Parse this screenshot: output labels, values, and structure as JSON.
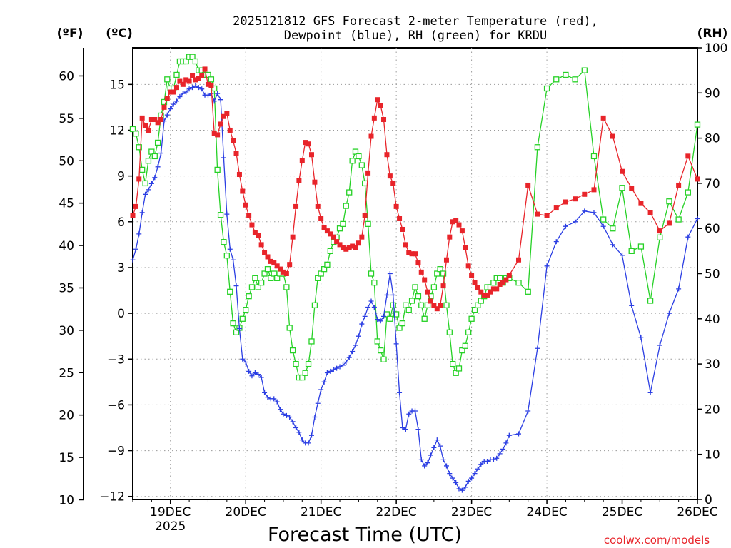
{
  "chart_data": {
    "type": "line",
    "title_line1": "2025121812 GFS Forecast 2-meter Temperature (red),",
    "title_line2": "Dewpoint (blue), RH (green) for KRDU",
    "units": {
      "f": "(ºF)",
      "c": "(ºC)",
      "rh": "(RH)"
    },
    "xlabel": "Forecast Time (UTC)",
    "credit": "coolwx.com/models",
    "xlim": [
      -0.5,
      7.0
    ],
    "ylim_c": [
      -12.2,
      17.4
    ],
    "ylim_rh": [
      0,
      100
    ],
    "x_ticks": [
      {
        "x": 0,
        "label": "19DEC",
        "sub": "2025"
      },
      {
        "x": 1,
        "label": "20DEC",
        "sub": ""
      },
      {
        "x": 2,
        "label": "21DEC",
        "sub": ""
      },
      {
        "x": 3,
        "label": "22DEC",
        "sub": ""
      },
      {
        "x": 4,
        "label": "23DEC",
        "sub": ""
      },
      {
        "x": 5,
        "label": "24DEC",
        "sub": ""
      },
      {
        "x": 6,
        "label": "25DEC",
        "sub": ""
      },
      {
        "x": 7,
        "label": "26DEC",
        "sub": ""
      }
    ],
    "c_ticks": [
      "15",
      "12",
      "9",
      "6",
      "3",
      "0",
      "−3",
      "−6",
      "−9",
      "−12"
    ],
    "c_tick_values": [
      15,
      12,
      9,
      6,
      3,
      0,
      -3,
      -6,
      -9,
      -12
    ],
    "f_ticks": [
      "60",
      "55",
      "50",
      "45",
      "40",
      "35",
      "30",
      "25",
      "20",
      "15",
      "10"
    ],
    "f_tick_values": [
      60,
      55,
      50,
      45,
      40,
      35,
      30,
      25,
      20,
      15,
      10
    ],
    "rh_ticks": [
      "100",
      "90",
      "80",
      "70",
      "60",
      "50",
      "40",
      "30",
      "20",
      "10",
      "0"
    ],
    "rh_tick_values": [
      100,
      90,
      80,
      70,
      60,
      50,
      40,
      30,
      20,
      10,
      0
    ],
    "series": [
      {
        "name": "Temperature",
        "unit": "C",
        "color": "#e8242a",
        "marker": "filled-square",
        "x": [
          -0.5,
          -0.458,
          -0.417,
          -0.375,
          -0.333,
          -0.292,
          -0.25,
          -0.208,
          -0.167,
          -0.125,
          -0.083,
          -0.042,
          0,
          0.042,
          0.083,
          0.125,
          0.167,
          0.208,
          0.25,
          0.292,
          0.333,
          0.375,
          0.417,
          0.458,
          0.5,
          0.542,
          0.583,
          0.625,
          0.667,
          0.708,
          0.75,
          0.792,
          0.833,
          0.875,
          0.917,
          0.958,
          1,
          1.042,
          1.083,
          1.125,
          1.167,
          1.208,
          1.25,
          1.292,
          1.333,
          1.375,
          1.417,
          1.458,
          1.5,
          1.542,
          1.583,
          1.625,
          1.667,
          1.708,
          1.75,
          1.792,
          1.833,
          1.875,
          1.917,
          1.958,
          2,
          2.042,
          2.083,
          2.125,
          2.167,
          2.208,
          2.25,
          2.292,
          2.333,
          2.375,
          2.417,
          2.458,
          2.5,
          2.542,
          2.583,
          2.625,
          2.667,
          2.708,
          2.75,
          2.792,
          2.833,
          2.875,
          2.917,
          2.958,
          3,
          3.042,
          3.083,
          3.125,
          3.167,
          3.208,
          3.25,
          3.292,
          3.333,
          3.375,
          3.417,
          3.458,
          3.5,
          3.542,
          3.583,
          3.625,
          3.667,
          3.708,
          3.75,
          3.792,
          3.833,
          3.875,
          3.917,
          3.958,
          4,
          4.042,
          4.083,
          4.125,
          4.167,
          4.208,
          4.25,
          4.292,
          4.333,
          4.375,
          4.417,
          4.458,
          4.5,
          4.625,
          4.75,
          4.875,
          5,
          5.125,
          5.25,
          5.375,
          5.5,
          5.625,
          5.75,
          5.875,
          6,
          6.125,
          6.25,
          6.375,
          6.5,
          6.625,
          6.75,
          6.875,
          7
        ],
        "values": [
          6.4,
          7.0,
          8.8,
          12.8,
          12.3,
          12.0,
          12.7,
          12.7,
          12.5,
          12.7,
          13.5,
          14.1,
          14.5,
          14.5,
          14.8,
          15.2,
          15.0,
          15.3,
          15.2,
          15.6,
          15.3,
          15.4,
          15.6,
          16.0,
          15.0,
          14.9,
          11.8,
          11.7,
          12.4,
          12.9,
          13.1,
          12.0,
          11.3,
          10.5,
          9.1,
          8.0,
          7.1,
          6.4,
          5.8,
          5.3,
          5.1,
          4.5,
          4.0,
          3.7,
          3.4,
          3.3,
          3.1,
          2.9,
          2.7,
          2.6,
          3.2,
          5.0,
          7.0,
          8.7,
          10.0,
          11.2,
          11.1,
          10.4,
          8.6,
          7.0,
          6.2,
          5.6,
          5.4,
          5.2,
          5.0,
          4.7,
          4.5,
          4.3,
          4.2,
          4.3,
          4.4,
          4.3,
          4.6,
          5.0,
          6.4,
          9.2,
          11.6,
          12.8,
          14.0,
          13.6,
          12.7,
          10.4,
          9.0,
          8.5,
          7.0,
          6.2,
          5.5,
          4.5,
          4.0,
          3.9,
          3.9,
          3.3,
          2.7,
          2.2,
          1.4,
          0.8,
          0.5,
          0.3,
          0.5,
          1.8,
          3.5,
          5.0,
          6.0,
          6.1,
          5.8,
          5.4,
          4.3,
          3.1,
          2.5,
          2.0,
          1.7,
          1.4,
          1.2,
          1.2,
          1.4,
          1.6,
          1.6,
          1.9,
          2.0,
          2.2,
          2.5,
          3.5,
          8.4,
          6.5,
          6.4,
          6.9,
          7.3,
          7.5,
          7.8,
          8.1,
          12.8,
          11.6,
          9.3,
          8.2,
          7.2,
          6.6,
          5.4,
          5.9,
          8.4,
          10.3,
          8.8
        ]
      },
      {
        "name": "Dewpoint",
        "unit": "C",
        "color": "#2b3ee3",
        "marker": "plus",
        "x": [
          -0.5,
          -0.458,
          -0.417,
          -0.375,
          -0.333,
          -0.292,
          -0.25,
          -0.208,
          -0.167,
          -0.125,
          -0.083,
          -0.042,
          0,
          0.042,
          0.083,
          0.125,
          0.167,
          0.208,
          0.25,
          0.292,
          0.333,
          0.375,
          0.417,
          0.458,
          0.5,
          0.542,
          0.583,
          0.625,
          0.667,
          0.708,
          0.75,
          0.792,
          0.833,
          0.875,
          0.917,
          0.958,
          1,
          1.042,
          1.083,
          1.125,
          1.167,
          1.208,
          1.25,
          1.292,
          1.333,
          1.375,
          1.417,
          1.458,
          1.5,
          1.542,
          1.583,
          1.625,
          1.667,
          1.708,
          1.75,
          1.792,
          1.833,
          1.875,
          1.917,
          1.958,
          2,
          2.042,
          2.083,
          2.125,
          2.167,
          2.208,
          2.25,
          2.292,
          2.333,
          2.375,
          2.417,
          2.458,
          2.5,
          2.542,
          2.583,
          2.625,
          2.667,
          2.708,
          2.75,
          2.792,
          2.833,
          2.875,
          2.917,
          2.958,
          3,
          3.042,
          3.083,
          3.125,
          3.167,
          3.208,
          3.25,
          3.292,
          3.333,
          3.375,
          3.417,
          3.458,
          3.5,
          3.542,
          3.583,
          3.625,
          3.667,
          3.708,
          3.75,
          3.792,
          3.833,
          3.875,
          3.917,
          3.958,
          4,
          4.042,
          4.083,
          4.125,
          4.167,
          4.208,
          4.25,
          4.292,
          4.333,
          4.375,
          4.417,
          4.458,
          4.5,
          4.625,
          4.75,
          4.875,
          5,
          5.125,
          5.25,
          5.375,
          5.5,
          5.625,
          5.75,
          5.875,
          6,
          6.125,
          6.25,
          6.375,
          6.5,
          6.625,
          6.75,
          6.875,
          7
        ],
        "values": [
          3.5,
          4.2,
          5.2,
          6.6,
          7.8,
          8.1,
          8.5,
          8.9,
          9.6,
          10.5,
          12.6,
          13.0,
          13.4,
          13.7,
          13.9,
          14.2,
          14.4,
          14.5,
          14.7,
          14.8,
          14.9,
          14.8,
          14.7,
          14.3,
          14.3,
          14.4,
          13.9,
          14.4,
          14.0,
          10.2,
          6.5,
          4.2,
          3.5,
          1.8,
          -1.0,
          -3.0,
          -3.2,
          -3.8,
          -4.1,
          -3.9,
          -4.0,
          -4.2,
          -5.2,
          -5.5,
          -5.6,
          -5.6,
          -5.8,
          -6.3,
          -6.6,
          -6.7,
          -6.8,
          -7.1,
          -7.5,
          -7.8,
          -8.3,
          -8.5,
          -8.5,
          -8.0,
          -6.8,
          -5.9,
          -5.0,
          -4.5,
          -3.9,
          -3.8,
          -3.7,
          -3.6,
          -3.5,
          -3.4,
          -3.2,
          -2.9,
          -2.5,
          -2.1,
          -1.5,
          -0.7,
          -0.2,
          0.4,
          0.8,
          0.4,
          -0.4,
          -0.5,
          -0.2,
          1.2,
          2.6,
          1.2,
          -2.0,
          -5.2,
          -7.5,
          -7.6,
          -6.6,
          -6.4,
          -6.4,
          -7.6,
          -9.6,
          -10.0,
          -9.8,
          -9.3,
          -8.8,
          -8.3,
          -8.7,
          -9.6,
          -10.0,
          -10.5,
          -10.8,
          -11.1,
          -11.5,
          -11.6,
          -11.4,
          -11.0,
          -10.8,
          -10.5,
          -10.2,
          -9.9,
          -9.7,
          -9.7,
          -9.6,
          -9.6,
          -9.5,
          -9.2,
          -8.9,
          -8.5,
          -8.0,
          -7.9,
          -6.4,
          -2.3,
          3.1,
          4.7,
          5.7,
          6.0,
          6.7,
          6.6,
          5.7,
          4.5,
          3.8,
          0.5,
          -1.6,
          -5.2,
          -2.1,
          0.0,
          1.6,
          5.0,
          6.2
        ]
      },
      {
        "name": "RH",
        "unit": "%",
        "color": "#26d126",
        "marker": "open-square",
        "x": [
          -0.5,
          -0.458,
          -0.417,
          -0.375,
          -0.333,
          -0.292,
          -0.25,
          -0.208,
          -0.167,
          -0.125,
          -0.083,
          -0.042,
          0,
          0.042,
          0.083,
          0.125,
          0.167,
          0.208,
          0.25,
          0.292,
          0.333,
          0.375,
          0.417,
          0.458,
          0.5,
          0.542,
          0.583,
          0.625,
          0.667,
          0.708,
          0.75,
          0.792,
          0.833,
          0.875,
          0.917,
          0.958,
          1,
          1.042,
          1.083,
          1.125,
          1.167,
          1.208,
          1.25,
          1.292,
          1.333,
          1.375,
          1.417,
          1.458,
          1.5,
          1.542,
          1.583,
          1.625,
          1.667,
          1.708,
          1.75,
          1.792,
          1.833,
          1.875,
          1.917,
          1.958,
          2,
          2.042,
          2.083,
          2.125,
          2.167,
          2.208,
          2.25,
          2.292,
          2.333,
          2.375,
          2.417,
          2.458,
          2.5,
          2.542,
          2.583,
          2.625,
          2.667,
          2.708,
          2.75,
          2.792,
          2.833,
          2.875,
          2.917,
          2.958,
          3,
          3.042,
          3.083,
          3.125,
          3.167,
          3.208,
          3.25,
          3.292,
          3.333,
          3.375,
          3.417,
          3.458,
          3.5,
          3.542,
          3.583,
          3.625,
          3.667,
          3.708,
          3.75,
          3.792,
          3.833,
          3.875,
          3.917,
          3.958,
          4,
          4.042,
          4.083,
          4.125,
          4.167,
          4.208,
          4.25,
          4.292,
          4.333,
          4.375,
          4.417,
          4.458,
          4.5,
          4.625,
          4.75,
          4.875,
          5,
          5.125,
          5.25,
          5.375,
          5.5,
          5.625,
          5.75,
          5.875,
          6,
          6.125,
          6.25,
          6.375,
          6.5,
          6.625,
          6.75,
          6.875,
          7
        ],
        "values": [
          82,
          81,
          78,
          73,
          70,
          75,
          77,
          76,
          79,
          85,
          88,
          93,
          91,
          91,
          94,
          97,
          97,
          97,
          98,
          98,
          97,
          95,
          95,
          94,
          94,
          93,
          91,
          73,
          63,
          57,
          54,
          46,
          39,
          37,
          38,
          40,
          42,
          45,
          47,
          49,
          47,
          48,
          50,
          51,
          49,
          50,
          49,
          50,
          50,
          47,
          38,
          33,
          30,
          27,
          27,
          28,
          30,
          35,
          43,
          49,
          50,
          51,
          52,
          55,
          57,
          58,
          60,
          61,
          65,
          68,
          75,
          77,
          76,
          74,
          70,
          61,
          50,
          48,
          35,
          33,
          31,
          41,
          40,
          43,
          41,
          38,
          39,
          43,
          42,
          44,
          47,
          45,
          43,
          40,
          43,
          45,
          47,
          50,
          51,
          50,
          43,
          37,
          30,
          28,
          29,
          33,
          34,
          37,
          40,
          42,
          43,
          44,
          45,
          47,
          47,
          48,
          49,
          49,
          48,
          49,
          49,
          48,
          46,
          78,
          91,
          93,
          94,
          93,
          95,
          76,
          62,
          60,
          69,
          55,
          56,
          44,
          58,
          66,
          62,
          68,
          83
        ]
      }
    ]
  }
}
